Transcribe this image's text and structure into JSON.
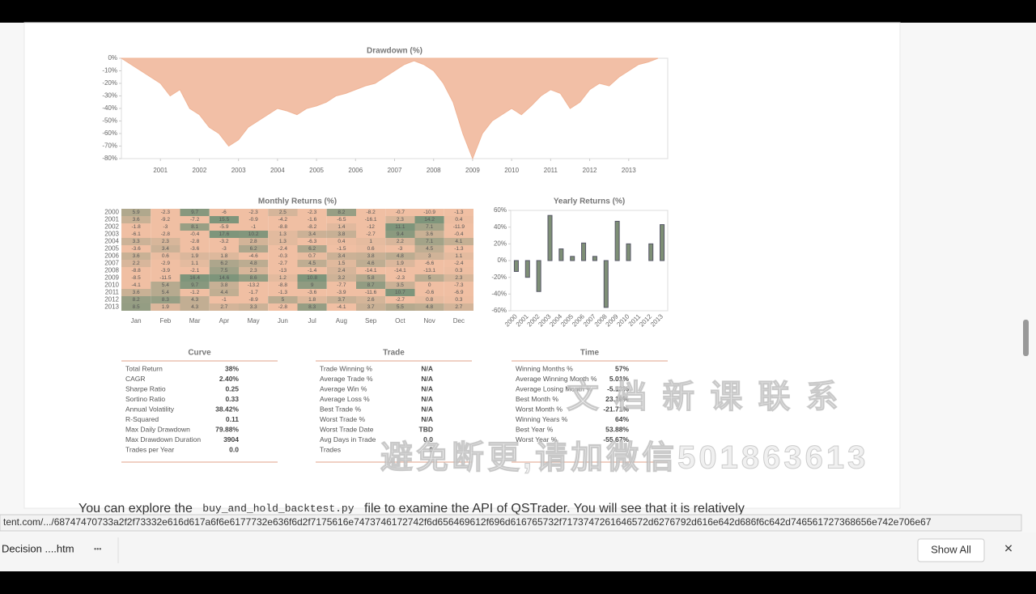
{
  "chart_data": [
    {
      "type": "area",
      "title": "Drawdown (%)",
      "color": "#f0b496",
      "x": [
        2000.0,
        2000.25,
        2000.5,
        2000.75,
        2001.0,
        2001.25,
        2001.5,
        2001.75,
        2002.0,
        2002.25,
        2002.5,
        2002.75,
        2003.0,
        2003.25,
        2003.5,
        2003.75,
        2004.0,
        2004.25,
        2004.5,
        2004.75,
        2005.0,
        2005.25,
        2005.5,
        2005.75,
        2006.0,
        2006.25,
        2006.5,
        2006.75,
        2007.0,
        2007.25,
        2007.5,
        2007.75,
        2008.0,
        2008.25,
        2008.5,
        2008.75,
        2009.0,
        2009.25,
        2009.5,
        2009.75,
        2010.0,
        2010.25,
        2010.5,
        2010.75,
        2011.0,
        2011.25,
        2011.5,
        2011.75,
        2012.0,
        2012.25,
        2012.5,
        2012.75,
        2013.0,
        2013.25,
        2013.5,
        2013.75
      ],
      "values": [
        0,
        -5,
        -10,
        -15,
        -20,
        -30,
        -25,
        -40,
        -45,
        -55,
        -60,
        -70,
        -65,
        -55,
        -50,
        -45,
        -40,
        -42,
        -45,
        -40,
        -38,
        -35,
        -30,
        -28,
        -25,
        -22,
        -20,
        -15,
        -10,
        -5,
        -2,
        -5,
        -10,
        -20,
        -35,
        -60,
        -80,
        -60,
        -50,
        -45,
        -40,
        -45,
        -38,
        -30,
        -25,
        -28,
        -40,
        -35,
        -25,
        -20,
        -22,
        -15,
        -10,
        -5,
        -3,
        0
      ],
      "xlim": [
        2000,
        2014
      ],
      "xticks": [
        2001,
        2002,
        2003,
        2004,
        2005,
        2006,
        2007,
        2008,
        2009,
        2010,
        2011,
        2012,
        2013
      ],
      "ylim": [
        -80,
        0
      ],
      "yticks": [
        {
          "value": 0,
          "label": "0%"
        },
        {
          "value": -10,
          "label": "-10%"
        },
        {
          "value": -20,
          "label": "-20%"
        },
        {
          "value": -30,
          "label": "-30%"
        },
        {
          "value": -40,
          "label": "-40%"
        },
        {
          "value": -50,
          "label": "-50%"
        },
        {
          "value": -60,
          "label": "-60%"
        },
        {
          "value": -70,
          "label": "-70%"
        },
        {
          "value": -80,
          "label": "-80%"
        }
      ]
    },
    {
      "type": "heatmap",
      "title": "Monthly Returns (%)",
      "colors": [
        "#f0bfa3",
        "#7e957b"
      ],
      "categories": [
        "Jan",
        "Feb",
        "Mar",
        "Apr",
        "May",
        "Jun",
        "Jul",
        "Aug",
        "Sep",
        "Oct",
        "Nov",
        "Dec"
      ],
      "rows": [
        "2000",
        "2001",
        "2002",
        "2003",
        "2004",
        "2005",
        "2006",
        "2007",
        "2008",
        "2009",
        "2010",
        "2011",
        "2012",
        "2013"
      ],
      "values": [
        [
          5.9,
          -2.3,
          9.7,
          -6.0,
          -2.3,
          2.5,
          -2.3,
          8.2,
          -8.2,
          -0.7,
          -10.9,
          -1.3
        ],
        [
          3.6,
          -9.2,
          -7.2,
          15.5,
          -0.9,
          -4.2,
          -1.6,
          -6.5,
          -16.1,
          2.3,
          14.2,
          0.4
        ],
        [
          -1.8,
          -3.0,
          8.1,
          -5.9,
          -1.0,
          -8.8,
          -8.2,
          1.4,
          -12.0,
          11.1,
          7.1,
          -11.9
        ],
        [
          -6.1,
          -2.8,
          -0.4,
          17.6,
          10.2,
          1.3,
          3.4,
          3.8,
          -2.7,
          9.4,
          3.6,
          -0.4
        ],
        [
          3.3,
          2.3,
          -2.8,
          -3.2,
          2.8,
          1.3,
          -6.3,
          0.4,
          1.0,
          2.2,
          7.1,
          4.1
        ],
        [
          -3.6,
          3.4,
          -3.6,
          -3.0,
          6.2,
          -2.4,
          6.2,
          -1.5,
          0.6,
          -3.0,
          4.5,
          -1.3
        ],
        [
          3.6,
          0.6,
          1.9,
          1.8,
          -4.6,
          -0.3,
          0.7,
          3.4,
          3.8,
          4.8,
          3.0,
          1.1
        ],
        [
          2.2,
          -2.9,
          1.1,
          6.2,
          4.8,
          -2.7,
          4.5,
          1.5,
          4.6,
          1.9,
          -6.6,
          -2.4
        ],
        [
          -8.8,
          -3.9,
          -2.1,
          7.5,
          2.3,
          -13.0,
          -1.4,
          2.4,
          -14.1,
          -14.1,
          -13.1,
          0.3
        ],
        [
          -8.5,
          -11.5,
          16.4,
          14.6,
          8.6,
          1.2,
          10.8,
          3.2,
          5.8,
          -2.3,
          5.0,
          2.3
        ],
        [
          -4.1,
          5.4,
          9.7,
          3.8,
          -13.2,
          -8.8,
          9.0,
          -7.7,
          8.7,
          3.5,
          0.0,
          -7.3
        ],
        [
          3.6,
          5.4,
          -1.2,
          4.4,
          -1.7,
          -1.3,
          -3.6,
          -3.9,
          -11.6,
          10.7,
          -0.6,
          -6.9
        ],
        [
          8.2,
          8.3,
          4.3,
          -1.0,
          -8.9,
          5.0,
          1.8,
          3.7,
          2.6,
          -2.7,
          0.8,
          0.3
        ],
        [
          8.5,
          1.9,
          4.3,
          2.7,
          3.3,
          -2.8,
          8.3,
          -4.1,
          3.7,
          5.5,
          4.8,
          2.7
        ]
      ]
    },
    {
      "type": "bar",
      "title": "Yearly Returns (%)",
      "color": "#7e8f76",
      "categories": [
        "2000",
        "2001",
        "2002",
        "2003",
        "2004",
        "2005",
        "2006",
        "2007",
        "2008",
        "2009",
        "2010",
        "2011",
        "2012",
        "2013"
      ],
      "values": [
        -13,
        -20,
        -37,
        54,
        14,
        5,
        21,
        5,
        -56,
        47,
        20,
        0,
        20,
        43
      ],
      "ylim": [
        -60,
        60
      ],
      "yticks": [
        {
          "value": 60,
          "label": "60%"
        },
        {
          "value": 40,
          "label": "40%"
        },
        {
          "value": 20,
          "label": "20%"
        },
        {
          "value": 0,
          "label": "0%"
        },
        {
          "value": -20,
          "label": "-20%"
        },
        {
          "value": -40,
          "label": "-40%"
        },
        {
          "value": -60,
          "label": "-60%"
        }
      ]
    }
  ],
  "tables": [
    {
      "title": "Curve",
      "rows": [
        [
          "Total Return",
          "38%"
        ],
        [
          "CAGR",
          "2.40%"
        ],
        [
          "Sharpe Ratio",
          "0.25"
        ],
        [
          "Sortino Ratio",
          "0.33"
        ],
        [
          "Annual Volatility",
          "38.42%"
        ],
        [
          "R-Squared",
          "0.11"
        ],
        [
          "Max Daily Drawdown",
          "79.88%"
        ],
        [
          "Max Drawdown Duration",
          "3904"
        ],
        [
          "Trades per Year",
          "0.0"
        ]
      ]
    },
    {
      "title": "Trade",
      "rows": [
        [
          "Trade Winning %",
          "N/A"
        ],
        [
          "Average Trade %",
          "N/A"
        ],
        [
          "Average Win %",
          "N/A"
        ],
        [
          "Average Loss %",
          "N/A"
        ],
        [
          "Best Trade %",
          "N/A"
        ],
        [
          "Worst Trade %",
          "N/A"
        ],
        [
          "Worst Trade Date",
          "TBD"
        ],
        [
          "Avg Days in Trade",
          "0.0"
        ],
        [
          "Trades",
          "0"
        ]
      ]
    },
    {
      "title": "Time",
      "rows": [
        [
          "Winning Months %",
          "57%"
        ],
        [
          "Average Winning Month %",
          "5.01%"
        ],
        [
          "Average Losing Month %",
          "-5.13%"
        ],
        [
          "Best Month %",
          "23.19%"
        ],
        [
          "Worst Month %",
          "-21.71%"
        ],
        [
          "Winning Years %",
          "64%"
        ],
        [
          "Best Year %",
          "53.88%"
        ],
        [
          "Worst Year %",
          "-55.67%"
        ]
      ]
    }
  ],
  "paragraph": {
    "before": "You can explore the ",
    "code": "buy_and_hold_backtest.py",
    "after": " file to examine the API of QSTrader. You will see that it is relatively"
  },
  "status_url": "tent.com/.../68747470733a2f2f73332e616d617a6f6e6177732e636f6d2f7175616e7473746172742f6d656469612f696d616765732f7173747261646572d6276792d616e642d686f6c642d746561727368656e742e706e67",
  "download_bar": {
    "file": "Decision ....htm",
    "more": "•••",
    "button": "Show All",
    "close": "✕"
  },
  "watermark": [
    "文 档 新 课 联 系",
    "避免断更,请加微信501863613"
  ]
}
